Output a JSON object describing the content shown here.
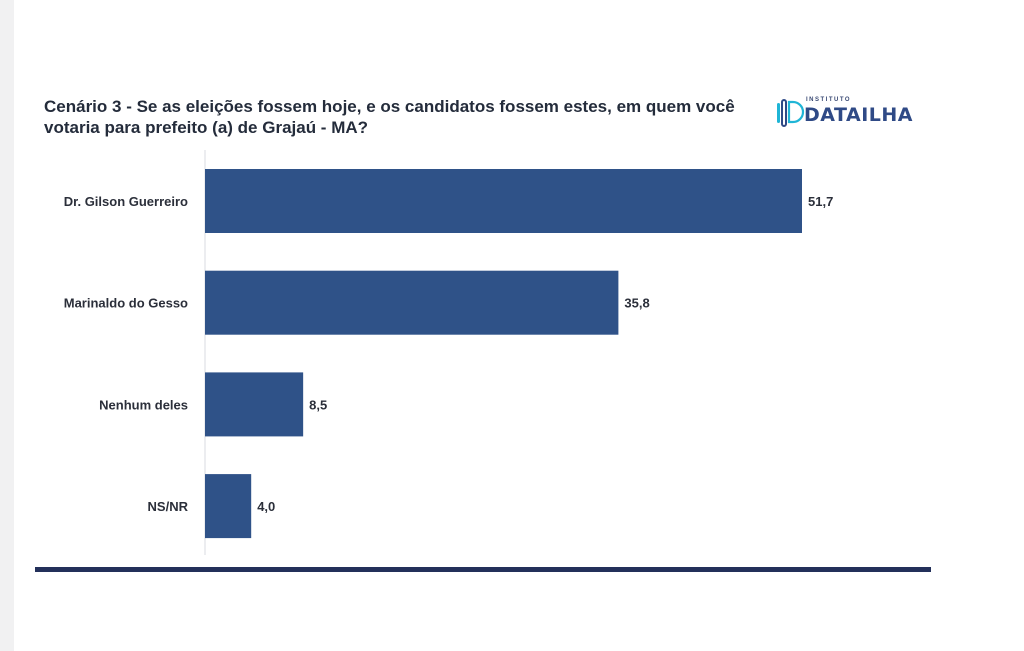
{
  "title": "Cenário 3 - Se as eleições fossem hoje, e os candidatos fossem estes, em quem você votaria para prefeito (a) de Grajaú - MA?",
  "logo": {
    "small": "INSTITUTO",
    "big": "DATAILHA"
  },
  "colors": {
    "bar": "#2f5288",
    "text": "#2b2f3a",
    "rule": "#23305a",
    "brand": "#2f4a86",
    "accent": "#1fb5d6"
  },
  "chart_data": {
    "type": "bar",
    "orientation": "horizontal",
    "categories": [
      "Dr. Gilson Guerreiro",
      "Marinaldo do Gesso",
      "Nenhum deles",
      "NS/NR"
    ],
    "values": [
      51.7,
      35.8,
      8.5,
      4.0
    ],
    "value_labels": [
      "51,7",
      "35,8",
      "8,5",
      "4,0"
    ],
    "title": "Cenário 3 - Se as eleições fossem hoje, e os candidatos fossem estes, em quem você votaria para prefeito (a) de Grajaú - MA?",
    "xlim": [
      0,
      51.7
    ],
    "grid": false,
    "legend": "none"
  }
}
